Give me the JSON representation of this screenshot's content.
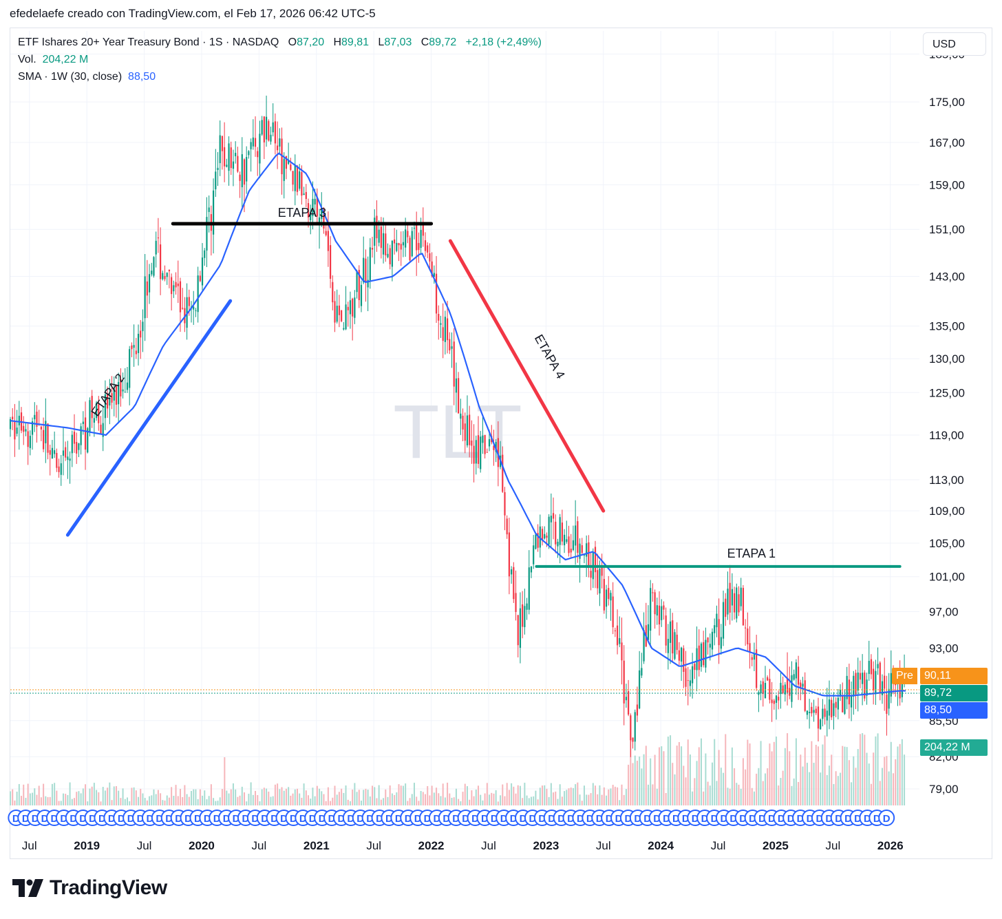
{
  "header": "efedelaefe creado con TradingView.com, el Feb 17, 2026 06:42 UTC-5",
  "legend": {
    "symbol": "ETF Ishares 20+ Year Treasury Bond · 1S · NASDAQ",
    "o_label": "O",
    "o_value": "87,20",
    "h_label": "H",
    "h_value": "89,81",
    "l_label": "L",
    "l_value": "87,03",
    "c_label": "C",
    "c_value": "89,72",
    "change": "+2,18 (+2,49%)",
    "vol_label": "Vol.",
    "vol_value": "204,22 M",
    "sma_label": "SMA · 1W (30, close)",
    "sma_value": "88,50"
  },
  "currency_button": "USD",
  "price_tags": {
    "pre_label": "Pre",
    "pre_value": "90,11",
    "last_value": "89,72",
    "sma_value": "88,50",
    "volume_value": "204,22 M"
  },
  "watermark": "TLT",
  "brand": "TradingView",
  "colors": {
    "up": "#089981",
    "down": "#f23645",
    "sma": "#2962ff",
    "stage1": "#089981",
    "stage2": "#2962ff",
    "stage3": "#000000",
    "stage4": "#f23645",
    "pre": "#f7931a"
  },
  "dividend_marker_letter": "D",
  "chart_data": {
    "type": "line",
    "title": "ETF Ishares 20+ Year Treasury Bond",
    "y_scale": "log",
    "ylim": [
      77.5,
      190
    ],
    "y_ticks": [
      "185,00",
      "175,00",
      "167,00",
      "159,00",
      "151,00",
      "143,00",
      "135,00",
      "130,00",
      "125,00",
      "119,00",
      "113,00",
      "109,00",
      "105,00",
      "101,00",
      "97,00",
      "93,00",
      "85,50",
      "82,00",
      "79,00"
    ],
    "x_ticks": [
      "Jul",
      "2019",
      "Jul",
      "2020",
      "Jul",
      "2021",
      "Jul",
      "2022",
      "Jul",
      "2023",
      "Jul",
      "2024",
      "Jul",
      "2025",
      "Jul",
      "2026"
    ],
    "x_range": [
      "2018-05",
      "2026-02"
    ],
    "series": [
      {
        "name": "",
        "approx_close": [
          [
            "2018-05",
            120
          ],
          [
            "2018-08",
            121
          ],
          [
            "2018-10",
            113
          ],
          [
            "2019-01",
            121
          ],
          [
            "2019-04",
            124
          ],
          [
            "2019-06",
            132
          ],
          [
            "2019-08",
            148
          ],
          [
            "2019-10",
            140
          ],
          [
            "2019-12",
            136
          ],
          [
            "2020-03",
            165
          ],
          [
            "2020-05",
            162
          ],
          [
            "2020-08",
            171
          ],
          [
            "2020-10",
            161
          ],
          [
            "2020-12",
            158
          ],
          [
            "2021-02",
            150
          ],
          [
            "2021-03",
            136
          ],
          [
            "2021-05",
            139
          ],
          [
            "2021-07",
            150
          ],
          [
            "2021-09",
            146
          ],
          [
            "2021-12",
            151
          ],
          [
            "2022-02",
            137
          ],
          [
            "2022-04",
            122
          ],
          [
            "2022-06",
            116
          ],
          [
            "2022-08",
            118
          ],
          [
            "2022-10",
            93
          ],
          [
            "2022-12",
            106
          ],
          [
            "2023-02",
            107
          ],
          [
            "2023-04",
            105
          ],
          [
            "2023-06",
            102
          ],
          [
            "2023-08",
            96
          ],
          [
            "2023-10",
            84
          ],
          [
            "2023-12",
            98
          ],
          [
            "2024-02",
            95
          ],
          [
            "2024-04",
            89
          ],
          [
            "2024-06",
            93
          ],
          [
            "2024-09",
            100
          ],
          [
            "2024-11",
            91
          ],
          [
            "2025-01",
            86
          ],
          [
            "2025-03",
            91
          ],
          [
            "2025-05",
            86
          ],
          [
            "2025-07",
            87
          ],
          [
            "2025-09",
            89
          ],
          [
            "2025-11",
            90
          ],
          [
            "2026-01",
            88
          ],
          [
            "2026-02",
            89.72
          ]
        ]
      },
      {
        "name": "SMA · 1W (30, close)",
        "values": [
          [
            "2018-05",
            121
          ],
          [
            "2018-11",
            120
          ],
          [
            "2019-03",
            119
          ],
          [
            "2019-06",
            123
          ],
          [
            "2019-09",
            132
          ],
          [
            "2019-12",
            138
          ],
          [
            "2020-03",
            145
          ],
          [
            "2020-06",
            158
          ],
          [
            "2020-09",
            165
          ],
          [
            "2020-12",
            161
          ],
          [
            "2021-03",
            149
          ],
          [
            "2021-06",
            142
          ],
          [
            "2021-09",
            143
          ],
          [
            "2021-12",
            147
          ],
          [
            "2022-03",
            137
          ],
          [
            "2022-06",
            123
          ],
          [
            "2022-09",
            113
          ],
          [
            "2022-12",
            106
          ],
          [
            "2023-03",
            103
          ],
          [
            "2023-06",
            104
          ],
          [
            "2023-09",
            100
          ],
          [
            "2023-12",
            93
          ],
          [
            "2024-03",
            91
          ],
          [
            "2024-06",
            92
          ],
          [
            "2024-09",
            93
          ],
          [
            "2024-12",
            92
          ],
          [
            "2025-03",
            89
          ],
          [
            "2025-06",
            88
          ],
          [
            "2025-09",
            88
          ],
          [
            "2026-02",
            88.5
          ]
        ]
      }
    ],
    "annotations": [
      {
        "label": "ETAPA 2",
        "from": [
          "2018-11",
          106
        ],
        "to": [
          "2020-04",
          139
        ]
      },
      {
        "label": "ETAPA 3",
        "from": [
          "2019-10",
          152
        ],
        "to": [
          "2022-01",
          152
        ]
      },
      {
        "label": "ETAPA 4",
        "from": [
          "2022-03",
          149
        ],
        "to": [
          "2023-07",
          109
        ]
      },
      {
        "label": "ETAPA 1",
        "from": [
          "2022-12",
          102.2
        ],
        "to": [
          "2026-02",
          102.2
        ]
      }
    ],
    "legend_position": "top-left"
  }
}
